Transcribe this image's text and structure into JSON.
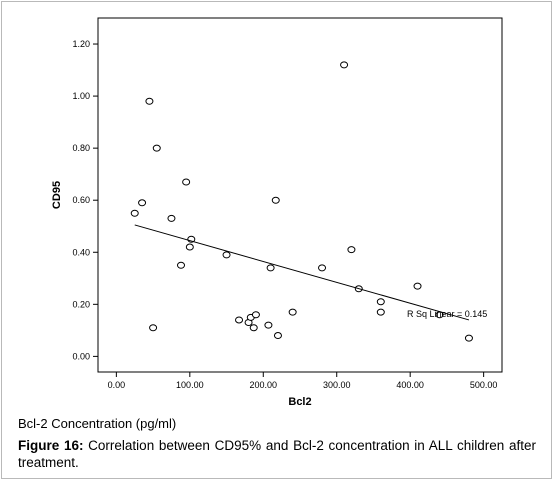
{
  "chart_data": {
    "type": "scatter",
    "xlabel": "Bcl2",
    "ylabel": "CD95",
    "xlim": [
      -25,
      525
    ],
    "ylim": [
      -0.06,
      1.3
    ],
    "x_ticks": [
      "0.00",
      "100.00",
      "200.00",
      "300.00",
      "400.00",
      "500.00"
    ],
    "y_ticks": [
      "0.00",
      "0.20",
      "0.40",
      "0.60",
      "0.80",
      "1.00",
      "1.20"
    ],
    "grid": false,
    "points": [
      {
        "x": 25,
        "y": 0.55
      },
      {
        "x": 35,
        "y": 0.59
      },
      {
        "x": 45,
        "y": 0.98
      },
      {
        "x": 50,
        "y": 0.11
      },
      {
        "x": 55,
        "y": 0.8
      },
      {
        "x": 75,
        "y": 0.53
      },
      {
        "x": 88,
        "y": 0.35
      },
      {
        "x": 95,
        "y": 0.67
      },
      {
        "x": 100,
        "y": 0.42
      },
      {
        "x": 102,
        "y": 0.45
      },
      {
        "x": 150,
        "y": 0.39
      },
      {
        "x": 167,
        "y": 0.14
      },
      {
        "x": 180,
        "y": 0.13
      },
      {
        "x": 183,
        "y": 0.15
      },
      {
        "x": 187,
        "y": 0.11
      },
      {
        "x": 190,
        "y": 0.16
      },
      {
        "x": 207,
        "y": 0.12
      },
      {
        "x": 210,
        "y": 0.34
      },
      {
        "x": 217,
        "y": 0.6
      },
      {
        "x": 220,
        "y": 0.08
      },
      {
        "x": 240,
        "y": 0.17
      },
      {
        "x": 280,
        "y": 0.34
      },
      {
        "x": 310,
        "y": 1.12
      },
      {
        "x": 320,
        "y": 0.41
      },
      {
        "x": 330,
        "y": 0.26
      },
      {
        "x": 360,
        "y": 0.21
      },
      {
        "x": 360,
        "y": 0.17
      },
      {
        "x": 410,
        "y": 0.27
      },
      {
        "x": 440,
        "y": 0.16
      },
      {
        "x": 480,
        "y": 0.07
      }
    ],
    "fit_line": {
      "x1": 25,
      "y1": 0.505,
      "x2": 480,
      "y2": 0.14
    },
    "annotation": "R Sq Linear = 0.145"
  },
  "below_label": "Bcl-2 Concentration (pg/ml)",
  "caption": {
    "prefix": "Figure 16:",
    "text": " Correlation between CD95% and Bcl-2 concentration in ALL children after treatment."
  }
}
